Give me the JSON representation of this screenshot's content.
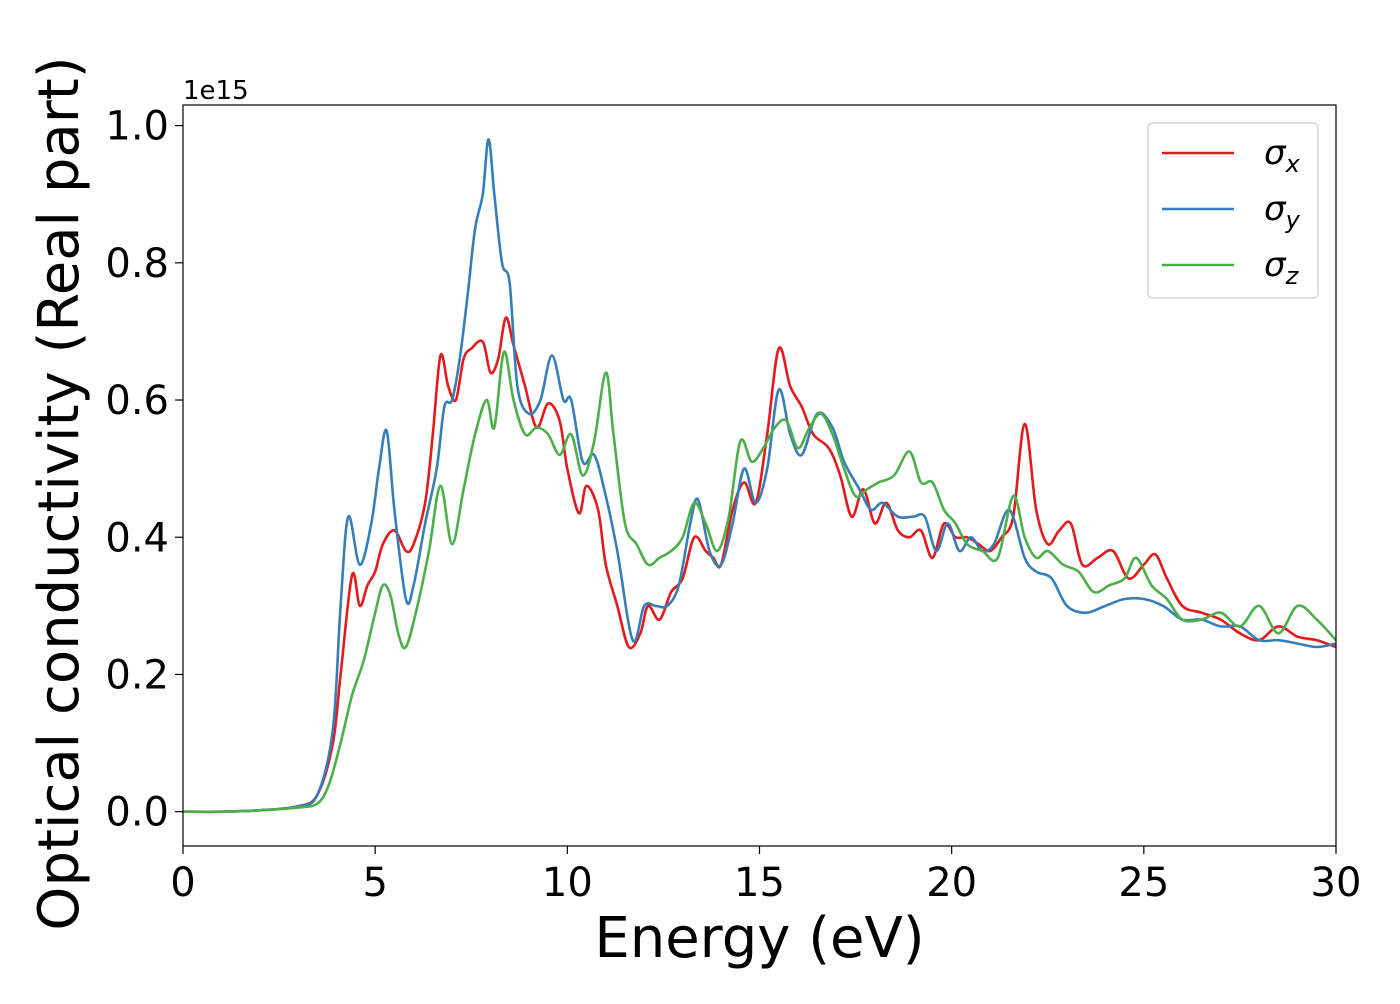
{
  "chart_data": {
    "type": "line",
    "title": "",
    "xlabel": "Energy (eV)",
    "ylabel": "Optical conductivity (Real part)",
    "y_offset_text": "1e15",
    "xlim": [
      0,
      30
    ],
    "ylim": [
      -0.05,
      1.03
    ],
    "x_ticks": [
      0,
      5,
      10,
      15,
      20,
      25,
      30
    ],
    "x_tick_labels": [
      "0",
      "5",
      "10",
      "15",
      "20",
      "25",
      "30"
    ],
    "y_ticks": [
      0.0,
      0.2,
      0.4,
      0.6,
      0.8,
      1.0
    ],
    "y_tick_labels": [
      "0.0",
      "0.2",
      "0.4",
      "0.6",
      "0.8",
      "1.0"
    ],
    "grid": false,
    "legend_position": "top-right",
    "series": [
      {
        "name": "σx",
        "name_base": "σ",
        "name_sub": "x",
        "color": "#e41a1c",
        "points": [
          [
            0,
            0.0
          ],
          [
            1,
            0.0
          ],
          [
            2,
            0.002
          ],
          [
            3,
            0.008
          ],
          [
            3.5,
            0.025
          ],
          [
            3.9,
            0.1
          ],
          [
            4.1,
            0.2
          ],
          [
            4.4,
            0.345
          ],
          [
            4.6,
            0.3
          ],
          [
            4.8,
            0.33
          ],
          [
            5.0,
            0.35
          ],
          [
            5.2,
            0.39
          ],
          [
            5.5,
            0.41
          ],
          [
            5.8,
            0.38
          ],
          [
            6.0,
            0.39
          ],
          [
            6.3,
            0.45
          ],
          [
            6.5,
            0.55
          ],
          [
            6.7,
            0.665
          ],
          [
            6.9,
            0.62
          ],
          [
            7.1,
            0.6
          ],
          [
            7.3,
            0.66
          ],
          [
            7.5,
            0.675
          ],
          [
            7.8,
            0.685
          ],
          [
            8.0,
            0.64
          ],
          [
            8.2,
            0.66
          ],
          [
            8.4,
            0.72
          ],
          [
            8.6,
            0.68
          ],
          [
            8.9,
            0.62
          ],
          [
            9.2,
            0.56
          ],
          [
            9.5,
            0.595
          ],
          [
            9.8,
            0.57
          ],
          [
            10.0,
            0.5
          ],
          [
            10.3,
            0.435
          ],
          [
            10.5,
            0.475
          ],
          [
            10.8,
            0.44
          ],
          [
            11.0,
            0.36
          ],
          [
            11.3,
            0.3
          ],
          [
            11.6,
            0.24
          ],
          [
            11.9,
            0.26
          ],
          [
            12.1,
            0.3
          ],
          [
            12.4,
            0.28
          ],
          [
            12.7,
            0.32
          ],
          [
            13.0,
            0.34
          ],
          [
            13.3,
            0.4
          ],
          [
            13.6,
            0.38
          ],
          [
            13.8,
            0.37
          ],
          [
            14.0,
            0.36
          ],
          [
            14.3,
            0.44
          ],
          [
            14.6,
            0.48
          ],
          [
            14.9,
            0.45
          ],
          [
            15.2,
            0.55
          ],
          [
            15.5,
            0.675
          ],
          [
            15.8,
            0.62
          ],
          [
            16.1,
            0.59
          ],
          [
            16.4,
            0.55
          ],
          [
            16.8,
            0.53
          ],
          [
            17.1,
            0.49
          ],
          [
            17.4,
            0.43
          ],
          [
            17.7,
            0.47
          ],
          [
            18.0,
            0.42
          ],
          [
            18.3,
            0.45
          ],
          [
            18.6,
            0.41
          ],
          [
            18.9,
            0.4
          ],
          [
            19.2,
            0.41
          ],
          [
            19.5,
            0.37
          ],
          [
            19.8,
            0.42
          ],
          [
            20.1,
            0.4
          ],
          [
            20.4,
            0.4
          ],
          [
            20.7,
            0.39
          ],
          [
            21.0,
            0.38
          ],
          [
            21.3,
            0.4
          ],
          [
            21.6,
            0.43
          ],
          [
            21.9,
            0.565
          ],
          [
            22.2,
            0.44
          ],
          [
            22.5,
            0.39
          ],
          [
            22.8,
            0.41
          ],
          [
            23.1,
            0.42
          ],
          [
            23.4,
            0.36
          ],
          [
            23.8,
            0.37
          ],
          [
            24.2,
            0.38
          ],
          [
            24.6,
            0.34
          ],
          [
            25.0,
            0.36
          ],
          [
            25.3,
            0.375
          ],
          [
            25.6,
            0.34
          ],
          [
            26.0,
            0.3
          ],
          [
            26.5,
            0.29
          ],
          [
            27.0,
            0.28
          ],
          [
            27.5,
            0.26
          ],
          [
            28.0,
            0.25
          ],
          [
            28.5,
            0.27
          ],
          [
            29.0,
            0.255
          ],
          [
            29.5,
            0.25
          ],
          [
            30.0,
            0.24
          ]
        ]
      },
      {
        "name": "σy",
        "name_base": "σ",
        "name_sub": "y",
        "color": "#377eb8",
        "points": [
          [
            0,
            0.0
          ],
          [
            1,
            0.0
          ],
          [
            2,
            0.002
          ],
          [
            3,
            0.008
          ],
          [
            3.5,
            0.025
          ],
          [
            3.9,
            0.12
          ],
          [
            4.1,
            0.3
          ],
          [
            4.3,
            0.43
          ],
          [
            4.6,
            0.36
          ],
          [
            4.9,
            0.42
          ],
          [
            5.1,
            0.5
          ],
          [
            5.3,
            0.555
          ],
          [
            5.5,
            0.44
          ],
          [
            5.8,
            0.31
          ],
          [
            6.0,
            0.33
          ],
          [
            6.3,
            0.42
          ],
          [
            6.6,
            0.5
          ],
          [
            6.8,
            0.59
          ],
          [
            7.0,
            0.6
          ],
          [
            7.2,
            0.66
          ],
          [
            7.4,
            0.75
          ],
          [
            7.6,
            0.85
          ],
          [
            7.8,
            0.9
          ],
          [
            7.95,
            0.98
          ],
          [
            8.1,
            0.9
          ],
          [
            8.3,
            0.8
          ],
          [
            8.5,
            0.77
          ],
          [
            8.7,
            0.62
          ],
          [
            9.0,
            0.58
          ],
          [
            9.3,
            0.6
          ],
          [
            9.6,
            0.665
          ],
          [
            9.9,
            0.6
          ],
          [
            10.1,
            0.6
          ],
          [
            10.4,
            0.51
          ],
          [
            10.7,
            0.52
          ],
          [
            11.0,
            0.46
          ],
          [
            11.3,
            0.38
          ],
          [
            11.7,
            0.25
          ],
          [
            12.0,
            0.3
          ],
          [
            12.3,
            0.3
          ],
          [
            12.6,
            0.3
          ],
          [
            12.9,
            0.33
          ],
          [
            13.2,
            0.42
          ],
          [
            13.4,
            0.455
          ],
          [
            13.7,
            0.38
          ],
          [
            14.0,
            0.36
          ],
          [
            14.3,
            0.42
          ],
          [
            14.6,
            0.5
          ],
          [
            14.9,
            0.45
          ],
          [
            15.2,
            0.5
          ],
          [
            15.5,
            0.615
          ],
          [
            15.8,
            0.55
          ],
          [
            16.1,
            0.52
          ],
          [
            16.5,
            0.58
          ],
          [
            16.9,
            0.56
          ],
          [
            17.2,
            0.51
          ],
          [
            17.6,
            0.47
          ],
          [
            17.9,
            0.44
          ],
          [
            18.2,
            0.45
          ],
          [
            18.6,
            0.43
          ],
          [
            19.0,
            0.43
          ],
          [
            19.3,
            0.43
          ],
          [
            19.6,
            0.38
          ],
          [
            19.9,
            0.42
          ],
          [
            20.2,
            0.38
          ],
          [
            20.5,
            0.4
          ],
          [
            20.8,
            0.38
          ],
          [
            21.1,
            0.39
          ],
          [
            21.5,
            0.44
          ],
          [
            21.9,
            0.37
          ],
          [
            22.2,
            0.35
          ],
          [
            22.6,
            0.34
          ],
          [
            23.0,
            0.3
          ],
          [
            23.5,
            0.29
          ],
          [
            24.0,
            0.3
          ],
          [
            24.5,
            0.31
          ],
          [
            25.0,
            0.31
          ],
          [
            25.5,
            0.3
          ],
          [
            26.0,
            0.28
          ],
          [
            26.5,
            0.28
          ],
          [
            27.0,
            0.27
          ],
          [
            27.5,
            0.27
          ],
          [
            28.0,
            0.25
          ],
          [
            28.5,
            0.25
          ],
          [
            29.0,
            0.245
          ],
          [
            29.5,
            0.24
          ],
          [
            30.0,
            0.245
          ]
        ]
      },
      {
        "name": "σz",
        "name_base": "σ",
        "name_sub": "z",
        "color": "#4daf4a",
        "points": [
          [
            0,
            0.0
          ],
          [
            1,
            0.0
          ],
          [
            2,
            0.002
          ],
          [
            3,
            0.006
          ],
          [
            3.5,
            0.012
          ],
          [
            3.8,
            0.04
          ],
          [
            4.1,
            0.1
          ],
          [
            4.4,
            0.17
          ],
          [
            4.7,
            0.22
          ],
          [
            5.0,
            0.29
          ],
          [
            5.2,
            0.33
          ],
          [
            5.4,
            0.315
          ],
          [
            5.6,
            0.26
          ],
          [
            5.8,
            0.24
          ],
          [
            6.1,
            0.3
          ],
          [
            6.4,
            0.38
          ],
          [
            6.7,
            0.475
          ],
          [
            7.0,
            0.39
          ],
          [
            7.3,
            0.47
          ],
          [
            7.6,
            0.55
          ],
          [
            7.9,
            0.6
          ],
          [
            8.1,
            0.56
          ],
          [
            8.35,
            0.67
          ],
          [
            8.6,
            0.6
          ],
          [
            8.9,
            0.55
          ],
          [
            9.2,
            0.56
          ],
          [
            9.5,
            0.55
          ],
          [
            9.8,
            0.52
          ],
          [
            10.1,
            0.55
          ],
          [
            10.4,
            0.49
          ],
          [
            10.7,
            0.54
          ],
          [
            11.0,
            0.64
          ],
          [
            11.2,
            0.55
          ],
          [
            11.5,
            0.42
          ],
          [
            11.8,
            0.39
          ],
          [
            12.1,
            0.36
          ],
          [
            12.4,
            0.37
          ],
          [
            12.7,
            0.38
          ],
          [
            13.0,
            0.4
          ],
          [
            13.3,
            0.45
          ],
          [
            13.6,
            0.42
          ],
          [
            13.9,
            0.38
          ],
          [
            14.2,
            0.43
          ],
          [
            14.5,
            0.54
          ],
          [
            14.8,
            0.51
          ],
          [
            15.1,
            0.53
          ],
          [
            15.4,
            0.56
          ],
          [
            15.7,
            0.57
          ],
          [
            16.0,
            0.53
          ],
          [
            16.3,
            0.56
          ],
          [
            16.6,
            0.58
          ],
          [
            16.9,
            0.55
          ],
          [
            17.2,
            0.5
          ],
          [
            17.5,
            0.46
          ],
          [
            17.8,
            0.47
          ],
          [
            18.1,
            0.48
          ],
          [
            18.5,
            0.49
          ],
          [
            18.9,
            0.525
          ],
          [
            19.2,
            0.48
          ],
          [
            19.5,
            0.48
          ],
          [
            19.8,
            0.44
          ],
          [
            20.1,
            0.42
          ],
          [
            20.4,
            0.39
          ],
          [
            20.8,
            0.38
          ],
          [
            21.2,
            0.37
          ],
          [
            21.6,
            0.46
          ],
          [
            21.9,
            0.4
          ],
          [
            22.2,
            0.37
          ],
          [
            22.5,
            0.38
          ],
          [
            22.9,
            0.36
          ],
          [
            23.3,
            0.35
          ],
          [
            23.7,
            0.32
          ],
          [
            24.1,
            0.33
          ],
          [
            24.5,
            0.34
          ],
          [
            24.8,
            0.37
          ],
          [
            25.2,
            0.33
          ],
          [
            25.6,
            0.31
          ],
          [
            26.0,
            0.28
          ],
          [
            26.5,
            0.28
          ],
          [
            27.0,
            0.29
          ],
          [
            27.5,
            0.27
          ],
          [
            28.0,
            0.3
          ],
          [
            28.5,
            0.26
          ],
          [
            29.0,
            0.3
          ],
          [
            29.5,
            0.28
          ],
          [
            30.0,
            0.25
          ]
        ]
      }
    ]
  }
}
